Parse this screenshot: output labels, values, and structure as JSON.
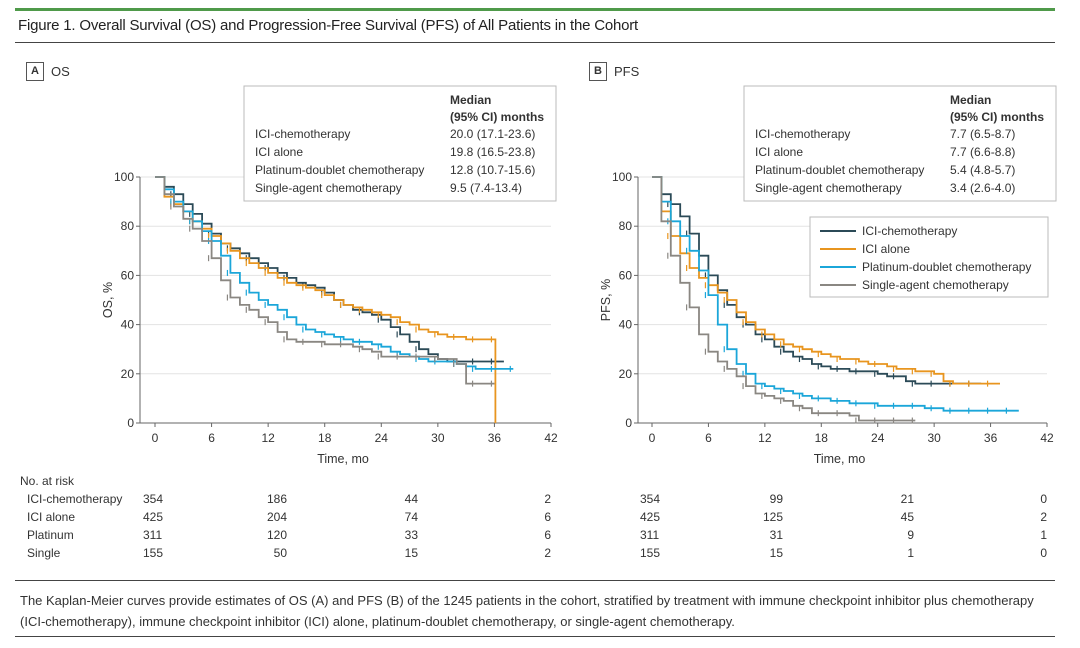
{
  "figure": {
    "title": "Figure 1. Overall Survival (OS) and Progression-Free Survival (PFS) of All Patients in the Cohort",
    "accent_color": "#4f9a4a",
    "caption": "The Kaplan-Meier curves provide estimates of OS (A) and PFS (B) of the 1245 patients in the cohort, stratified by treatment with immune checkpoint inhibitor plus chemotherapy (ICI-chemotherapy), immune checkpoint inhibitor (ICI) alone, platinum-doublet chemotherapy, or single-agent chemotherapy."
  },
  "series_colors": {
    "ICI-chemotherapy": "#2b4a57",
    "ICI alone": "#e8951f",
    "Platinum-doublet chemotherapy": "#1ba6d9",
    "Single-agent chemotherapy": "#8a8782"
  },
  "risk_table": {
    "title": "No. at risk",
    "rows": [
      "ICI-chemotherapy",
      "ICI alone",
      "Platinum",
      "Single"
    ]
  },
  "chart_data": [
    {
      "type": "line",
      "panel_letter": "A",
      "panel_title": "OS",
      "xlabel": "Time, mo",
      "ylabel": "OS, %",
      "xlim": [
        0,
        42
      ],
      "ylim": [
        0,
        100
      ],
      "xticks": [
        0,
        6,
        12,
        18,
        24,
        30,
        36,
        42
      ],
      "yticks": [
        0,
        20,
        40,
        60,
        80,
        100
      ],
      "grid": true,
      "median_box": {
        "header1": "Median",
        "header2": "(95% CI) months",
        "rows": [
          {
            "label": "ICI-chemotherapy",
            "value": "20.0 (17.1-23.6)"
          },
          {
            "label": "ICI alone",
            "value": "19.8 (16.5-23.8)"
          },
          {
            "label": "Platinum-doublet chemotherapy",
            "value": "12.8 (10.7-15.6)"
          },
          {
            "label": "Single-agent chemotherapy",
            "value": "9.5 (7.4-13.4)"
          }
        ]
      },
      "series": [
        {
          "name": "ICI-chemotherapy",
          "x": [
            0,
            1,
            2,
            3,
            4,
            5,
            6,
            7,
            8,
            9,
            10,
            11,
            12,
            13,
            14,
            15,
            16,
            17,
            18,
            19,
            20,
            21,
            22,
            23,
            24,
            25,
            26,
            27,
            28,
            29,
            30,
            31,
            32,
            33,
            34,
            35,
            36,
            37
          ],
          "y": [
            100,
            96,
            93,
            89,
            85,
            81,
            77,
            73,
            71,
            69,
            67,
            65,
            63,
            61,
            59,
            57,
            56,
            55,
            53,
            50,
            48,
            46,
            45,
            44,
            42,
            39,
            36,
            33,
            30,
            28,
            26,
            25,
            25,
            25,
            25,
            25,
            25,
            25
          ]
        },
        {
          "name": "ICI alone",
          "x": [
            0,
            1,
            2,
            3,
            4,
            5,
            6,
            7,
            8,
            9,
            10,
            11,
            12,
            13,
            14,
            15,
            16,
            17,
            18,
            19,
            20,
            21,
            22,
            23,
            24,
            25,
            26,
            27,
            28,
            29,
            30,
            31,
            32,
            33,
            34,
            35,
            36,
            36.1
          ],
          "y": [
            100,
            92,
            89,
            86,
            82,
            79,
            76,
            73,
            70,
            67,
            65,
            63,
            61,
            59,
            57,
            56,
            55,
            54,
            52,
            50,
            48,
            47,
            46,
            45,
            44,
            43,
            41,
            40,
            38,
            37,
            36,
            35,
            35,
            34,
            34,
            34,
            34,
            0
          ]
        },
        {
          "name": "Platinum-doublet chemotherapy",
          "x": [
            0,
            1,
            2,
            3,
            4,
            5,
            6,
            7,
            8,
            9,
            10,
            11,
            12,
            13,
            14,
            15,
            16,
            17,
            18,
            19,
            20,
            21,
            22,
            23,
            24,
            25,
            26,
            27,
            28,
            29,
            30,
            31,
            32,
            33,
            34,
            35,
            36,
            37,
            38
          ],
          "y": [
            100,
            95,
            90,
            86,
            82,
            78,
            74,
            68,
            61,
            57,
            53,
            50,
            48,
            46,
            43,
            40,
            38,
            37,
            36,
            35,
            34,
            33,
            33,
            32,
            31,
            29,
            28,
            27,
            26,
            25,
            25,
            25,
            24,
            23,
            22,
            22,
            22,
            22,
            22
          ]
        },
        {
          "name": "Single-agent chemotherapy",
          "x": [
            0,
            1,
            2,
            3,
            4,
            5,
            6,
            7,
            8,
            9,
            10,
            11,
            12,
            13,
            14,
            15,
            16,
            17,
            18,
            19,
            20,
            21,
            22,
            23,
            24,
            25,
            26,
            27,
            28,
            29,
            30,
            31,
            32,
            33,
            34,
            35,
            36
          ],
          "y": [
            100,
            93,
            88,
            83,
            79,
            74,
            67,
            58,
            51,
            48,
            46,
            43,
            41,
            37,
            34,
            33,
            33,
            33,
            32,
            32,
            32,
            31,
            30,
            29,
            27,
            27,
            27,
            27,
            27,
            27,
            26,
            26,
            24,
            16,
            16,
            16,
            16
          ]
        }
      ],
      "at_risk_times": [
        0,
        12,
        24,
        36
      ],
      "at_risk": {
        "ICI-chemotherapy": [
          354,
          186,
          44,
          2
        ],
        "ICI alone": [
          425,
          204,
          74,
          6
        ],
        "Platinum": [
          311,
          120,
          33,
          6
        ],
        "Single": [
          155,
          50,
          15,
          2
        ]
      }
    },
    {
      "type": "line",
      "panel_letter": "B",
      "panel_title": "PFS",
      "xlabel": "Time, mo",
      "ylabel": "PFS, %",
      "xlim": [
        0,
        42
      ],
      "ylim": [
        0,
        100
      ],
      "xticks": [
        0,
        6,
        12,
        18,
        24,
        30,
        36,
        42
      ],
      "yticks": [
        0,
        20,
        40,
        60,
        80,
        100
      ],
      "grid": true,
      "legend": {
        "placement": "top-right",
        "entries": [
          "ICI-chemotherapy",
          "ICI alone",
          "Platinum-doublet chemotherapy",
          "Single-agent chemotherapy"
        ]
      },
      "median_box": {
        "header1": "Median",
        "header2": "(95% CI) months",
        "rows": [
          {
            "label": "ICI-chemotherapy",
            "value": "7.7 (6.5-8.7)"
          },
          {
            "label": "ICI alone",
            "value": "7.7 (6.6-8.8)"
          },
          {
            "label": "Platinum-doublet chemotherapy",
            "value": "5.4 (4.8-5.7)"
          },
          {
            "label": "Single-agent chemotherapy",
            "value": "3.4 (2.6-4.0)"
          }
        ]
      },
      "series": [
        {
          "name": "ICI-chemotherapy",
          "x": [
            0,
            1,
            2,
            3,
            4,
            5,
            6,
            7,
            8,
            9,
            10,
            11,
            12,
            13,
            14,
            15,
            16,
            17,
            18,
            19,
            20,
            21,
            22,
            23,
            24,
            25,
            26,
            27,
            28,
            29,
            30,
            31,
            32,
            33,
            34,
            35
          ],
          "y": [
            100,
            93,
            89,
            84,
            77,
            68,
            60,
            54,
            48,
            43,
            40,
            36,
            34,
            31,
            29,
            27,
            26,
            24,
            23,
            22,
            22,
            21,
            21,
            21,
            20,
            19,
            19,
            17,
            16,
            16,
            16,
            16,
            16,
            16,
            16,
            16
          ]
        },
        {
          "name": "ICI alone",
          "x": [
            0,
            1,
            2,
            3,
            4,
            5,
            6,
            7,
            8,
            9,
            10,
            11,
            12,
            13,
            14,
            15,
            16,
            17,
            18,
            19,
            20,
            21,
            22,
            23,
            24,
            25,
            26,
            27,
            28,
            29,
            30,
            31,
            32,
            33,
            34,
            35,
            36,
            37
          ],
          "y": [
            100,
            86,
            76,
            69,
            63,
            59,
            56,
            53,
            50,
            45,
            41,
            38,
            36,
            34,
            32,
            31,
            30,
            29,
            28,
            27,
            26,
            26,
            25,
            24,
            24,
            23,
            22,
            22,
            21,
            21,
            20,
            17,
            16,
            16,
            16,
            16,
            16,
            16
          ]
        },
        {
          "name": "Platinum-doublet chemotherapy",
          "x": [
            0,
            1,
            2,
            3,
            4,
            5,
            6,
            7,
            8,
            9,
            10,
            11,
            12,
            13,
            14,
            15,
            16,
            17,
            18,
            19,
            20,
            21,
            22,
            23,
            24,
            25,
            26,
            27,
            28,
            29,
            30,
            31,
            32,
            33,
            34,
            35,
            36,
            37,
            38,
            39
          ],
          "y": [
            100,
            90,
            82,
            76,
            70,
            62,
            52,
            40,
            30,
            24,
            20,
            16,
            15,
            14,
            13,
            12,
            11,
            10,
            10,
            9,
            9,
            8,
            8,
            8,
            7,
            7,
            7,
            7,
            7,
            6,
            6,
            5,
            5,
            5,
            5,
            5,
            5,
            5,
            5,
            5
          ]
        },
        {
          "name": "Single-agent chemotherapy",
          "x": [
            0,
            1,
            2,
            3,
            4,
            5,
            6,
            7,
            8,
            9,
            10,
            11,
            12,
            13,
            14,
            15,
            16,
            17,
            18,
            19,
            20,
            21,
            22,
            23,
            24,
            25,
            26,
            27,
            28
          ],
          "y": [
            100,
            82,
            68,
            57,
            47,
            36,
            29,
            25,
            22,
            19,
            15,
            12,
            11,
            10,
            9,
            7,
            6,
            4,
            4,
            4,
            4,
            3,
            1,
            1,
            1,
            1,
            1,
            1,
            1
          ]
        }
      ],
      "at_risk_times": [
        0,
        12,
        24,
        36
      ],
      "at_risk": {
        "ICI-chemotherapy": [
          354,
          99,
          21,
          0
        ],
        "ICI alone": [
          425,
          125,
          45,
          2
        ],
        "Platinum": [
          311,
          31,
          9,
          1
        ],
        "Single": [
          155,
          15,
          1,
          0
        ]
      }
    }
  ]
}
